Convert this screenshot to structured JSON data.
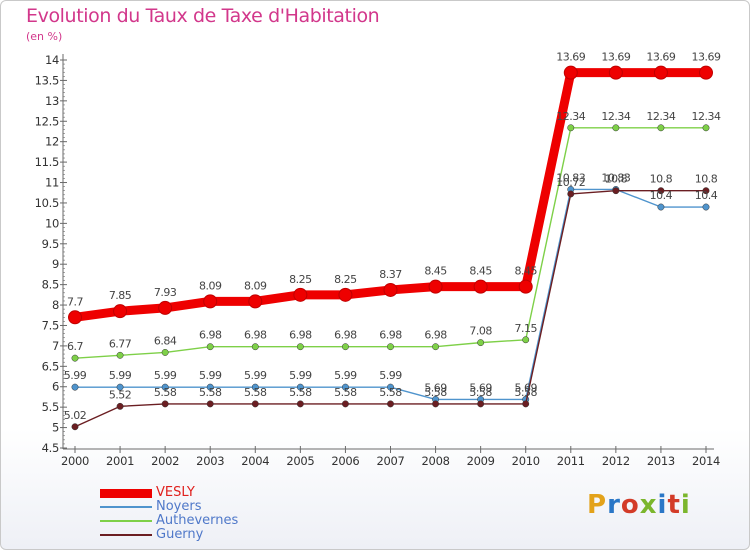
{
  "title": "Evolution du Taux de Taxe d'Habitation",
  "subtitle": "(en %)",
  "logo": {
    "text": "Proxiti",
    "colors": [
      "#e3a21a",
      "#2a77c7",
      "#d33b28",
      "#7bb62d",
      "#2a77c7",
      "#d33b28",
      "#7bb62d"
    ]
  },
  "chart_data": {
    "type": "line",
    "x": [
      "2000",
      "2001",
      "2002",
      "2003",
      "2004",
      "2005",
      "2006",
      "2007",
      "2008",
      "2009",
      "2010",
      "2011",
      "2012",
      "2013",
      "2014"
    ],
    "ylim": [
      4.5,
      14
    ],
    "yticks": [
      "4.5",
      "5",
      "5.5",
      "6",
      "6.5",
      "7",
      "7.5",
      "8",
      "8.5",
      "9",
      "9.5",
      "10",
      "10.5",
      "11",
      "11.5",
      "12",
      "12.5",
      "13",
      "13.5",
      "14"
    ],
    "grid": false,
    "legend_position": "bottom-left",
    "series": [
      {
        "name": "VESLY",
        "color": "#ee0000",
        "values": [
          7.7,
          7.85,
          7.93,
          8.09,
          8.09,
          8.25,
          8.25,
          8.37,
          8.45,
          8.45,
          8.45,
          13.69,
          13.69,
          13.69,
          13.69
        ],
        "labels": [
          "7.7",
          "7.85",
          "7.93",
          "8.09",
          "8.09",
          "8.25",
          "8.25",
          "8.37",
          "8.45",
          "8.45",
          "8.45",
          "13.69",
          "13.69",
          "13.69",
          "13.69"
        ]
      },
      {
        "name": "Noyers",
        "color": "#4f94cd",
        "values": [
          5.99,
          5.99,
          5.99,
          5.99,
          5.99,
          5.99,
          5.99,
          5.99,
          5.69,
          5.69,
          5.69,
          10.83,
          10.83,
          10.4,
          10.4
        ],
        "labels": [
          "5.99",
          "5.99",
          "5.99",
          "5.99",
          "5.99",
          "5.99",
          "5.99",
          "5.99",
          "5.69",
          "5.69",
          "5.69",
          "10.83",
          "10.83",
          "10.4",
          "10.4"
        ]
      },
      {
        "name": "Authevernes",
        "color": "#7ed048",
        "values": [
          6.7,
          6.77,
          6.84,
          6.98,
          6.98,
          6.98,
          6.98,
          6.98,
          6.98,
          7.08,
          7.15,
          12.34,
          12.34,
          12.34,
          12.34
        ],
        "labels": [
          "6.7",
          "6.77",
          "6.84",
          "6.98",
          "6.98",
          "6.98",
          "6.98",
          "6.98",
          "6.98",
          "7.08",
          "7.15",
          "12.34",
          "12.34",
          "12.34",
          "12.34"
        ]
      },
      {
        "name": "Guerny",
        "color": "#6b1e22",
        "values": [
          5.02,
          5.52,
          5.58,
          5.58,
          5.58,
          5.58,
          5.58,
          5.58,
          5.58,
          5.58,
          5.58,
          10.72,
          10.8,
          10.8,
          10.8
        ],
        "labels": [
          "5.02",
          "5.52",
          "5.58",
          "5.58",
          "5.58",
          "5.58",
          "5.58",
          "5.58",
          "5.58",
          "5.58",
          "5.58",
          "10.72",
          "10.8",
          "10.8",
          "10.8"
        ]
      }
    ]
  }
}
